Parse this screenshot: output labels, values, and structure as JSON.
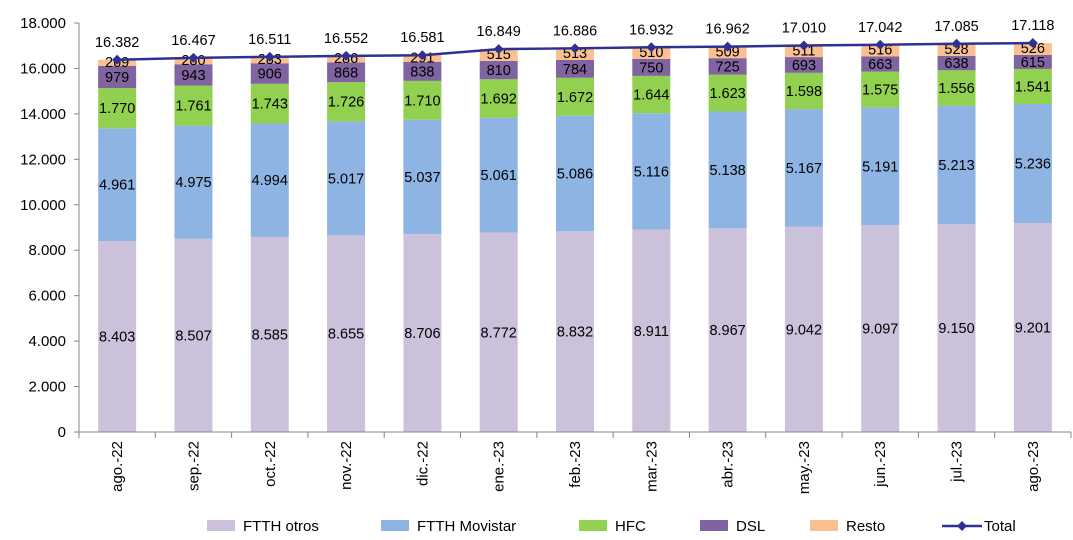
{
  "chart_data": {
    "type": "bar",
    "stacked": true,
    "categories": [
      "ago.-22",
      "sep.-22",
      "oct.-22",
      "nov.-22",
      "dic.-22",
      "ene.-23",
      "feb.-23",
      "mar.-23",
      "abr.-23",
      "may.-23",
      "jun.-23",
      "jul.-23",
      "ago.-23"
    ],
    "series": [
      {
        "name": "FTTH otros",
        "color": "#ccc1da",
        "values": [
          8403,
          8507,
          8585,
          8655,
          8706,
          8772,
          8832,
          8911,
          8967,
          9042,
          9097,
          9150,
          9201
        ],
        "labels": [
          "8.403",
          "8.507",
          "8.585",
          "8.655",
          "8.706",
          "8.772",
          "8.832",
          "8.911",
          "8.967",
          "9.042",
          "9.097",
          "9.150",
          "9.201"
        ]
      },
      {
        "name": "FTTH Movistar",
        "color": "#8eb4e3",
        "values": [
          4961,
          4975,
          4994,
          5017,
          5037,
          5061,
          5086,
          5116,
          5138,
          5167,
          5191,
          5213,
          5236
        ],
        "labels": [
          "4.961",
          "4.975",
          "4.994",
          "5.017",
          "5.037",
          "5.061",
          "5.086",
          "5.116",
          "5.138",
          "5.167",
          "5.191",
          "5.213",
          "5.236"
        ]
      },
      {
        "name": "HFC",
        "color": "#92d050",
        "values": [
          1770,
          1761,
          1743,
          1726,
          1710,
          1692,
          1672,
          1644,
          1623,
          1598,
          1575,
          1556,
          1541
        ],
        "labels": [
          "1.770",
          "1.761",
          "1.743",
          "1.726",
          "1.710",
          "1.692",
          "1.672",
          "1.644",
          "1.623",
          "1.598",
          "1.575",
          "1.556",
          "1.541"
        ]
      },
      {
        "name": "DSL",
        "color": "#8064a2",
        "values": [
          979,
          943,
          906,
          868,
          838,
          810,
          784,
          750,
          725,
          693,
          663,
          638,
          615
        ],
        "labels": [
          "979",
          "943",
          "906",
          "868",
          "838",
          "810",
          "784",
          "750",
          "725",
          "693",
          "663",
          "638",
          "615"
        ]
      },
      {
        "name": "Resto",
        "color": "#fac090",
        "values": [
          269,
          280,
          283,
          286,
          291,
          515,
          513,
          510,
          509,
          511,
          516,
          528,
          526
        ],
        "labels": [
          "269",
          "280",
          "283",
          "286",
          "291",
          "515",
          "513",
          "510",
          "509",
          "511",
          "516",
          "528",
          "526"
        ]
      }
    ],
    "total": {
      "name": "Total",
      "color": "#2e3192",
      "values": [
        16382,
        16467,
        16511,
        16552,
        16581,
        16849,
        16886,
        16932,
        16962,
        17010,
        17042,
        17085,
        17118
      ],
      "labels": [
        "16.382",
        "16.467",
        "16.511",
        "16.552",
        "16.581",
        "16.849",
        "16.886",
        "16.932",
        "16.962",
        "17.010",
        "17.042",
        "17.085",
        "17.118"
      ]
    },
    "ylim": [
      0,
      18000
    ],
    "yticks": [
      0,
      2000,
      4000,
      6000,
      8000,
      10000,
      12000,
      14000,
      16000,
      18000
    ],
    "ytick_labels": [
      "0",
      "2.000",
      "4.000",
      "6.000",
      "8.000",
      "10.000",
      "12.000",
      "14.000",
      "16.000",
      "18.000"
    ],
    "legend_position": "bottom",
    "grid": false
  }
}
